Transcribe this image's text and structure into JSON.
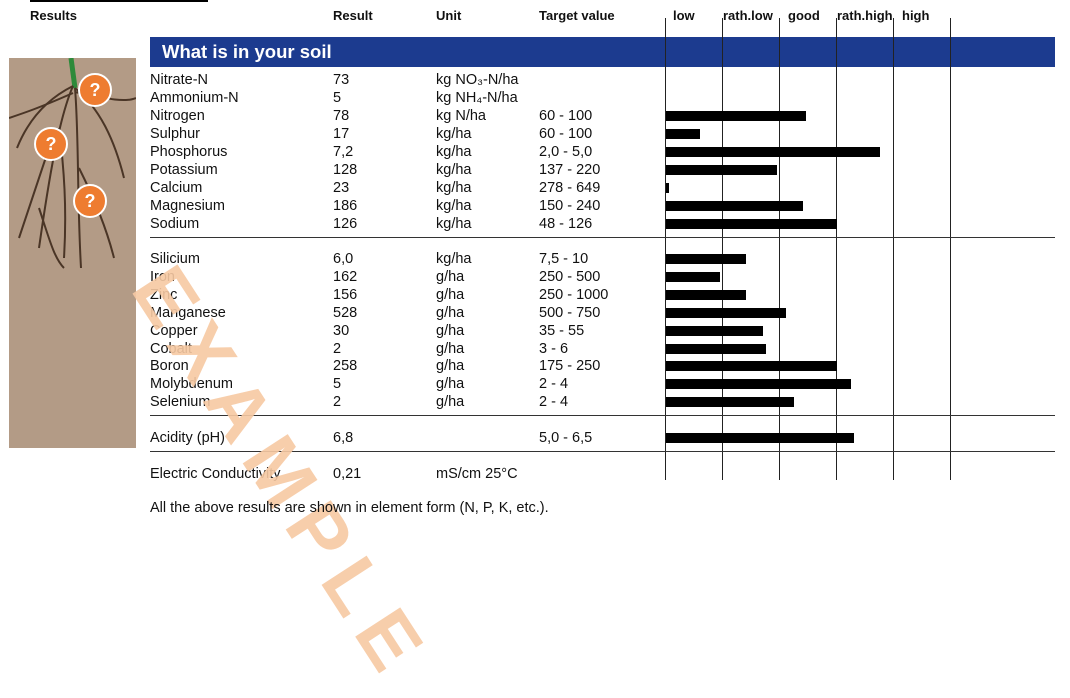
{
  "header": {
    "results": "Results",
    "result": "Result",
    "unit": "Unit",
    "target": "Target value",
    "scale": [
      "low",
      "rath.low",
      "good",
      "rath.high",
      "high"
    ]
  },
  "banner": "What is in your soil",
  "watermark": "EXAMPLE",
  "rows": [
    {
      "name": "Nitrate-N",
      "result": "73",
      "unit": "kg NO₃-N/ha",
      "target": "",
      "bar": null
    },
    {
      "name": "Ammonium-N",
      "result": "5",
      "unit": "kg NH₄-N/ha",
      "target": "",
      "bar": null
    },
    {
      "name": "Nitrogen",
      "result": "78",
      "unit": "kg N/ha",
      "target": "60 - 100",
      "bar": 0.49
    },
    {
      "name": "Sulphur",
      "result": "17",
      "unit": "kg/ha",
      "target": "60 - 100",
      "bar": 0.12
    },
    {
      "name": "Phosphorus",
      "result": "7,2",
      "unit": "kg/ha",
      "target": "2,0 - 5,0",
      "bar": 0.75
    },
    {
      "name": "Potassium",
      "result": "128",
      "unit": "kg/ha",
      "target": "137 - 220",
      "bar": 0.39
    },
    {
      "name": "Calcium",
      "result": "23",
      "unit": "kg/ha",
      "target": "278 - 649",
      "bar": 0.01
    },
    {
      "name": "Magnesium",
      "result": "186",
      "unit": "kg/ha",
      "target": "150 - 240",
      "bar": 0.48
    },
    {
      "name": "Sodium",
      "result": "126",
      "unit": "kg/ha",
      "target": "48 - 126",
      "bar": 0.6
    },
    {
      "name": "Silicium",
      "result": "6,0",
      "unit": "kg/ha",
      "target": "7,5 - 10",
      "bar": 0.28
    },
    {
      "name": "Iron",
      "result": "162",
      "unit": "g/ha",
      "target": "250 - 500",
      "bar": 0.19
    },
    {
      "name": "Zinc",
      "result": "156",
      "unit": "g/ha",
      "target": "250 - 1000",
      "bar": 0.28
    },
    {
      "name": "Manganese",
      "result": "528",
      "unit": "g/ha",
      "target": "500 - 750",
      "bar": 0.42
    },
    {
      "name": "Copper",
      "result": "30",
      "unit": "g/ha",
      "target": "35 - 55",
      "bar": 0.34
    },
    {
      "name": "Cobalt",
      "result": "2",
      "unit": "g/ha",
      "target": "3 - 6",
      "bar": 0.35
    },
    {
      "name": "Boron",
      "result": "258",
      "unit": "g/ha",
      "target": "175 - 250",
      "bar": 0.6
    },
    {
      "name": "Molybdenum",
      "result": "5",
      "unit": "g/ha",
      "target": "2 - 4",
      "bar": 0.65
    },
    {
      "name": "Selenium",
      "result": "2",
      "unit": "g/ha",
      "target": "2 - 4",
      "bar": 0.45
    },
    {
      "name": "Acidity (pH)",
      "result": "6,8",
      "unit": "",
      "target": "5,0 - 6,5",
      "bar": 0.66
    },
    {
      "name": "Electric Conductivity",
      "result": "0,21",
      "unit": "mS/cm 25°C",
      "target": "",
      "bar": null
    }
  ],
  "footnote": "All the above results are shown in element form (N, P, K, etc.).",
  "colors": {
    "banner": "#1c3b8f",
    "question": "#ee7c30",
    "soil": "#b39b86",
    "watermark": "#f7c9a3"
  }
}
